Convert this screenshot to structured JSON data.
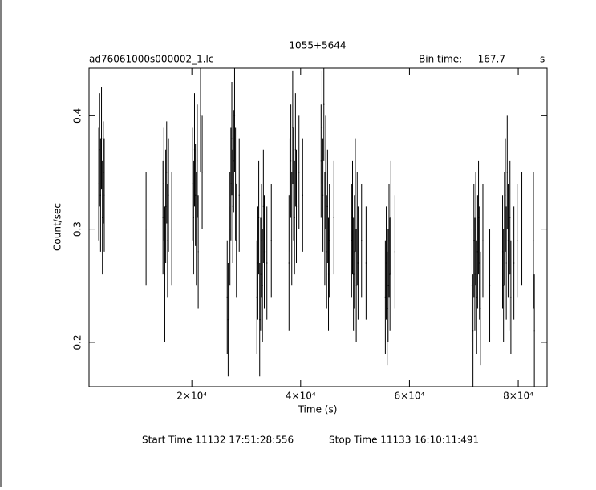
{
  "chart_data": {
    "type": "errorbar",
    "title": "1055+5644",
    "subtitle": "ad76061000s000002_1.lc",
    "bin_time_label": "Bin time:",
    "bin_time": 167.7,
    "bin_time_unit": "s",
    "xlabel": "Time (s)",
    "ylabel": "Count/sec",
    "start_time": "Start Time 11132 17:51:28:556",
    "stop_time": "Stop Time 11133 16:10:11:491",
    "color": "#000000",
    "xlim": [
      1100,
      85300
    ],
    "ylim": [
      0.161,
      0.442
    ],
    "xticks": [
      {
        "value": 20000,
        "label": "2×10⁴"
      },
      {
        "value": 40000,
        "label": "4×10⁴"
      },
      {
        "value": 60000,
        "label": "6×10⁴"
      },
      {
        "value": 80000,
        "label": "8×10⁴"
      }
    ],
    "yticks": [
      0.2,
      0.3,
      0.4
    ],
    "x": [
      2880,
      3050,
      3220,
      3390,
      3560,
      3730,
      3900,
      11586,
      14690,
      14860,
      15030,
      15200,
      15370,
      15540,
      15710,
      16310,
      20150,
      20320,
      20490,
      20660,
      20830,
      21000,
      21170,
      21600,
      21900,
      26500,
      26670,
      26840,
      27010,
      27180,
      27350,
      27520,
      27690,
      27860,
      28030,
      28200,
      28710,
      31960,
      32130,
      32300,
      32470,
      32640,
      32810,
      32980,
      33150,
      33320,
      33800,
      34610,
      37860,
      38030,
      38200,
      38370,
      38540,
      38710,
      38880,
      39050,
      39220,
      39700,
      40370,
      43760,
      43930,
      44100,
      44270,
      44440,
      44610,
      44780,
      44950,
      45120,
      45290,
      46120,
      49370,
      49540,
      49710,
      49880,
      50050,
      50220,
      50390,
      50560,
      51200,
      52030,
      55570,
      55740,
      55910,
      56080,
      56250,
      56420,
      56590,
      57340,
      71510,
      71680,
      71850,
      72020,
      72190,
      72360,
      72530,
      72700,
      72870,
      73040,
      73500,
      74760,
      77120,
      77290,
      77460,
      77630,
      77800,
      77970,
      78140,
      78310,
      78480,
      78650,
      79200,
      79800,
      80660,
      82790,
      82960
    ],
    "values": [
      0.34,
      0.37,
      0.33,
      0.38,
      0.31,
      0.35,
      0.33,
      0.3,
      0.31,
      0.34,
      0.26,
      0.32,
      0.35,
      0.29,
      0.33,
      0.3,
      0.34,
      0.31,
      0.37,
      0.33,
      0.3,
      0.36,
      0.28,
      0.4,
      0.35,
      0.24,
      0.22,
      0.27,
      0.3,
      0.34,
      0.38,
      0.32,
      0.36,
      0.4,
      0.34,
      0.29,
      0.33,
      0.24,
      0.27,
      0.31,
      0.22,
      0.26,
      0.29,
      0.25,
      0.32,
      0.28,
      0.27,
      0.29,
      0.27,
      0.33,
      0.36,
      0.3,
      0.39,
      0.34,
      0.31,
      0.37,
      0.32,
      0.35,
      0.33,
      0.36,
      0.39,
      0.33,
      0.41,
      0.3,
      0.35,
      0.28,
      0.32,
      0.26,
      0.29,
      0.31,
      0.29,
      0.31,
      0.26,
      0.28,
      0.33,
      0.25,
      0.3,
      0.27,
      0.29,
      0.27,
      0.24,
      0.27,
      0.23,
      0.25,
      0.29,
      0.26,
      0.31,
      0.28,
      0.25,
      0.21,
      0.29,
      0.26,
      0.3,
      0.24,
      0.28,
      0.31,
      0.27,
      0.23,
      0.29,
      0.25,
      0.28,
      0.25,
      0.3,
      0.33,
      0.27,
      0.35,
      0.29,
      0.26,
      0.31,
      0.24,
      0.27,
      0.29,
      0.3,
      0.29,
      0.21
    ],
    "errors": [
      0.05,
      0.05,
      0.05,
      0.045,
      0.05,
      0.045,
      0.05,
      0.05,
      0.05,
      0.05,
      0.06,
      0.05,
      0.045,
      0.05,
      0.05,
      0.05,
      0.05,
      0.05,
      0.05,
      0.045,
      0.05,
      0.05,
      0.05,
      0.05,
      0.05,
      0.05,
      0.05,
      0.05,
      0.05,
      0.05,
      0.05,
      0.05,
      0.045,
      0.05,
      0.05,
      0.05,
      0.05,
      0.05,
      0.05,
      0.05,
      0.05,
      0.05,
      0.05,
      0.05,
      0.05,
      0.05,
      0.05,
      0.05,
      0.06,
      0.05,
      0.05,
      0.05,
      0.05,
      0.05,
      0.05,
      0.05,
      0.05,
      0.05,
      0.05,
      0.05,
      0.05,
      0.05,
      0.05,
      0.05,
      0.05,
      0.05,
      0.05,
      0.05,
      0.05,
      0.05,
      0.05,
      0.05,
      0.05,
      0.05,
      0.05,
      0.05,
      0.05,
      0.05,
      0.05,
      0.05,
      0.05,
      0.05,
      0.05,
      0.05,
      0.05,
      0.05,
      0.05,
      0.05,
      0.05,
      0.05,
      0.05,
      0.05,
      0.05,
      0.05,
      0.05,
      0.05,
      0.05,
      0.05,
      0.05,
      0.05,
      0.05,
      0.05,
      0.05,
      0.05,
      0.05,
      0.05,
      0.05,
      0.05,
      0.05,
      0.05,
      0.05,
      0.05,
      0.05,
      0.06,
      0.05
    ]
  }
}
